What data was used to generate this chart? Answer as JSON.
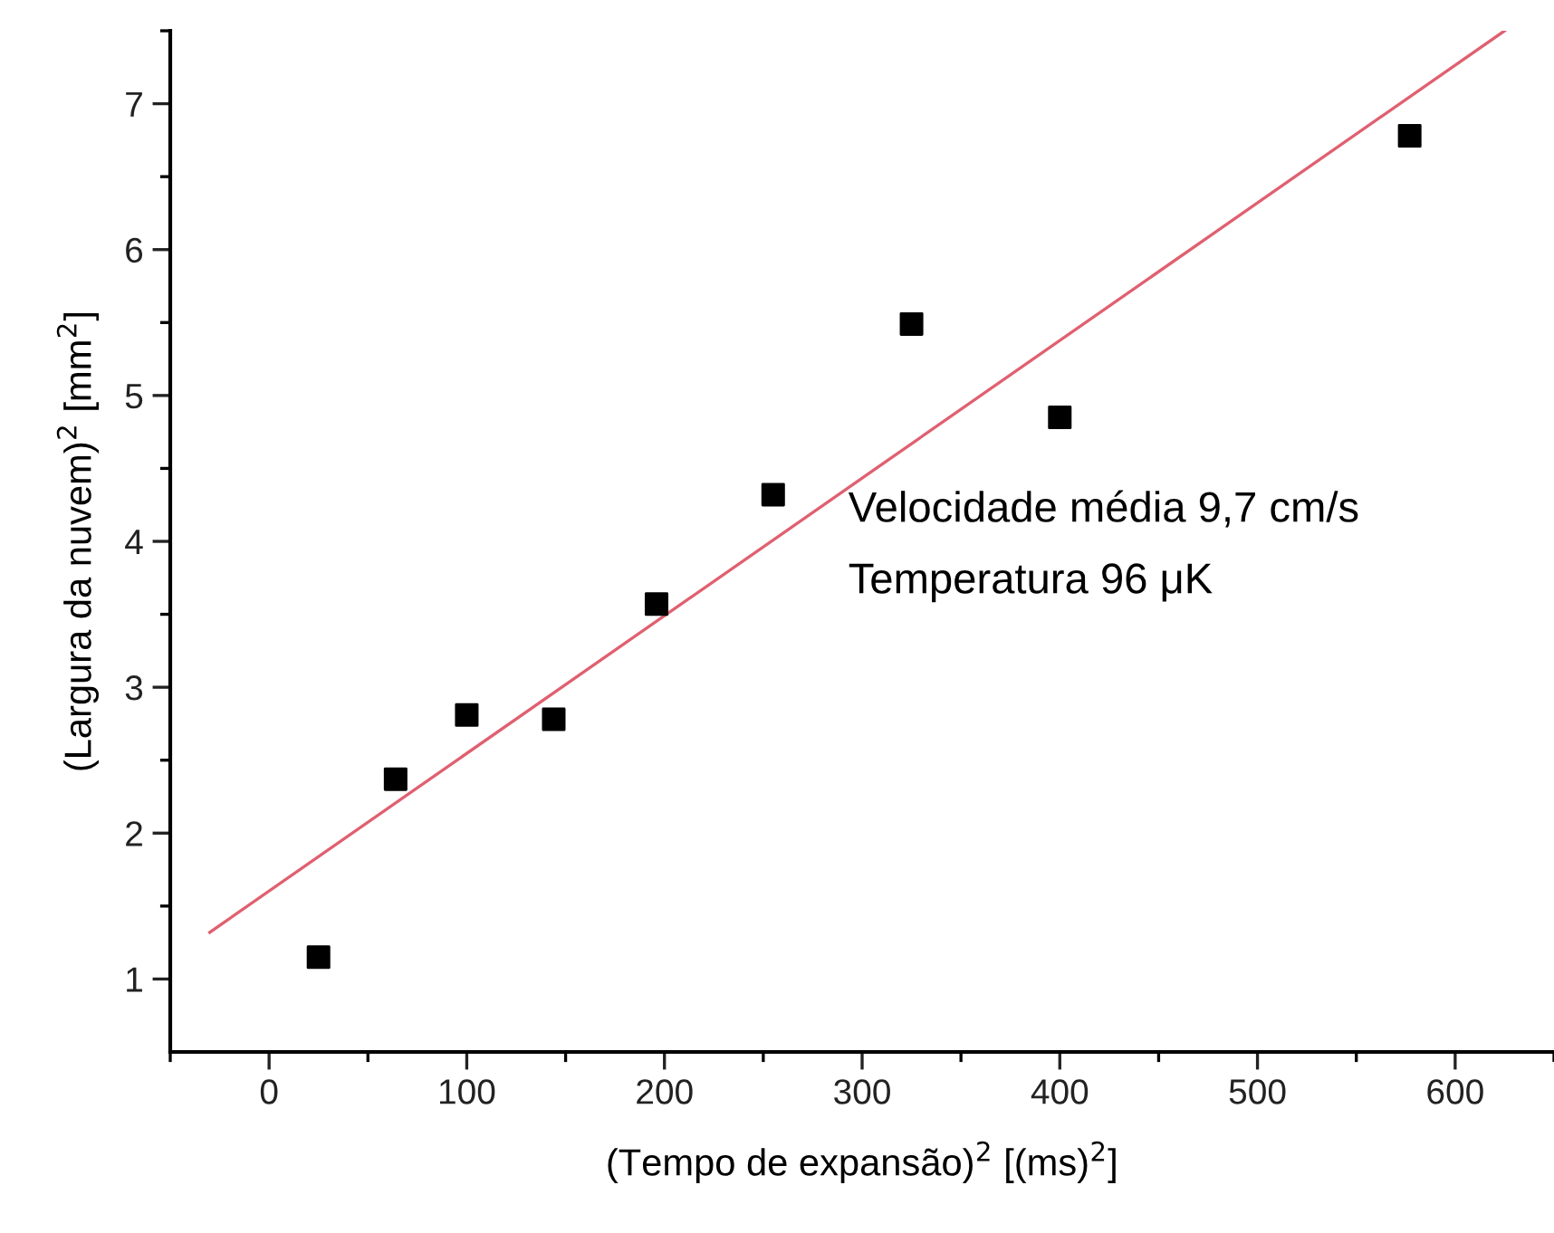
{
  "chart_data": {
    "type": "scatter",
    "xlabel": "(Tempo de expansão)$^{2}$ [(ms)$^{2}$]",
    "ylabel": "(Largura da nuvem)$^{2}$ [mm$^{2}$]",
    "series": [
      {
        "color": "#000000",
        "marker": "square",
        "x": [
          25,
          64,
          100,
          144,
          196,
          255,
          325,
          400,
          577
        ],
        "values": [
          1.15,
          2.37,
          2.81,
          2.78,
          3.57,
          4.32,
          5.49,
          4.85,
          6.78
        ]
      },
      {
        "type": "line",
        "color": "#e06070",
        "marker": "none",
        "line_style": "solid",
        "x": [
          -30,
          625
        ],
        "values": [
          1.32,
          7.5
        ]
      }
    ],
    "xlim": [
      -50,
      650
    ],
    "ylim": [
      0.5,
      7.5
    ],
    "xticks": [
      {
        "value": -50,
        "label": null
      },
      0,
      {
        "value": 50,
        "label": null
      },
      100,
      {
        "value": 150,
        "label": null
      },
      200,
      {
        "value": 250,
        "label": null
      },
      300,
      {
        "value": 350,
        "label": null
      },
      400,
      {
        "value": 450,
        "label": null
      },
      500,
      {
        "value": 550,
        "label": null
      },
      600,
      {
        "value": 650,
        "label": null
      }
    ],
    "yticks": [
      1,
      {
        "value": 1.5,
        "label": null
      },
      2,
      {
        "value": 2.5,
        "label": null
      },
      3,
      {
        "value": 3.5,
        "label": null
      },
      4,
      {
        "value": 4.5,
        "label": null
      },
      5,
      {
        "value": 5.5,
        "label": null
      },
      6,
      {
        "value": 6.5,
        "label": null
      },
      7,
      {
        "value": 7.5,
        "label": null
      }
    ],
    "annotations": [
      "Velocidade média 9,7 cm/s",
      "Temperatura 96 μK"
    ],
    "grid": false,
    "legend": false
  }
}
